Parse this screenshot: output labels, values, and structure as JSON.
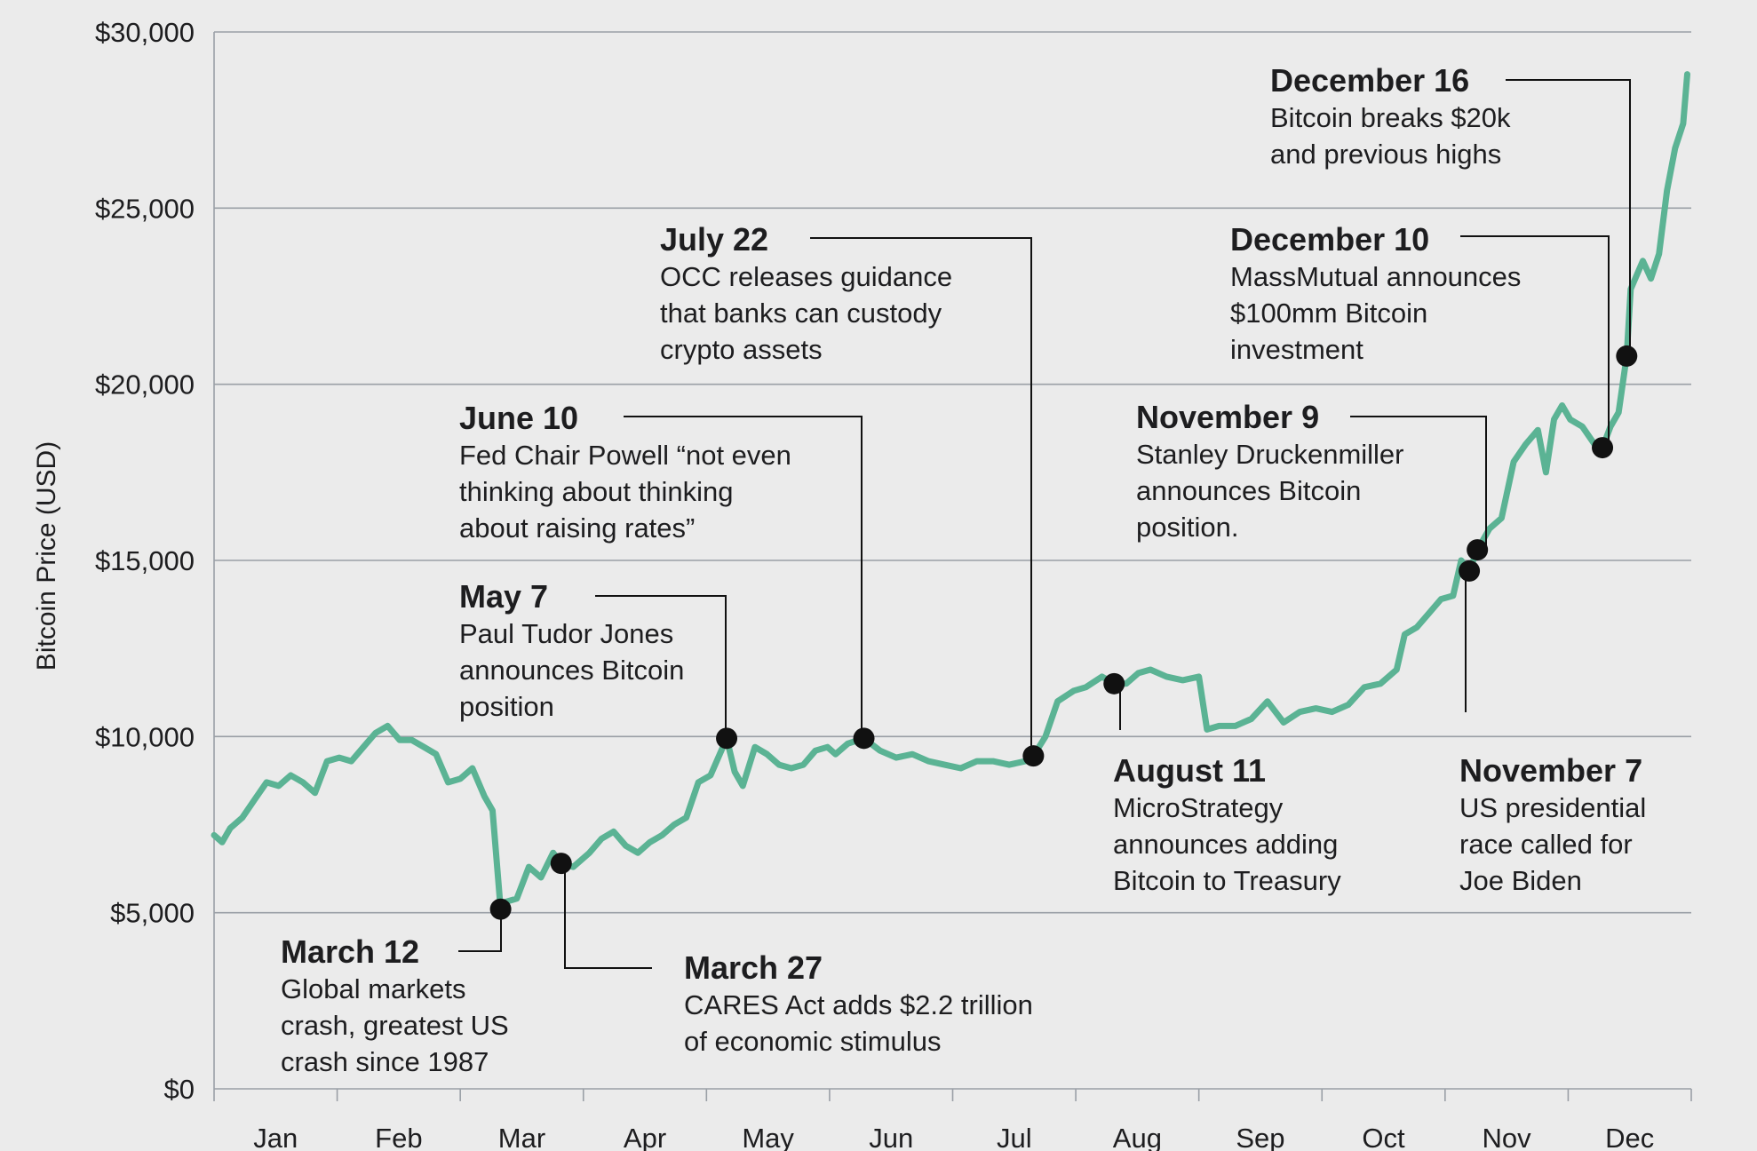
{
  "chart_data": {
    "type": "line",
    "ylabel": "Bitcoin Price (USD)",
    "xlabel": "",
    "title": "",
    "ylim": [
      0,
      30000
    ],
    "yticks": [
      "$0",
      "$5,000",
      "$10,000",
      "$15,000",
      "$20,000",
      "$25,000",
      "$30,000"
    ],
    "ytick_values": [
      0,
      5000,
      10000,
      15000,
      20000,
      25000,
      30000
    ],
    "months": [
      "Jan",
      "Feb",
      "Mar",
      "Apr",
      "May",
      "Jun",
      "Jul",
      "Aug",
      "Sep",
      "Oct",
      "Nov",
      "Dec"
    ],
    "grid": "horizontal",
    "colors": {
      "line": "#5bb394",
      "marker": "#111111",
      "grid": "#9a9fa6",
      "leader": "#111111"
    },
    "series": [
      {
        "x": [
          "2020-01-01",
          "2020-01-03",
          "2020-01-05",
          "2020-01-08",
          "2020-01-11",
          "2020-01-14",
          "2020-01-17",
          "2020-01-20",
          "2020-01-23",
          "2020-01-26",
          "2020-01-29",
          "2020-02-01",
          "2020-02-04",
          "2020-02-07",
          "2020-02-10",
          "2020-02-13",
          "2020-02-16",
          "2020-02-19",
          "2020-02-22",
          "2020-02-25",
          "2020-02-28",
          "2020-03-02",
          "2020-03-05",
          "2020-03-08",
          "2020-03-10",
          "2020-03-12",
          "2020-03-13",
          "2020-03-16",
          "2020-03-19",
          "2020-03-22",
          "2020-03-25",
          "2020-03-27",
          "2020-03-30",
          "2020-04-03",
          "2020-04-06",
          "2020-04-09",
          "2020-04-12",
          "2020-04-15",
          "2020-04-18",
          "2020-04-21",
          "2020-04-24",
          "2020-04-27",
          "2020-04-30",
          "2020-05-03",
          "2020-05-07",
          "2020-05-09",
          "2020-05-11",
          "2020-05-14",
          "2020-05-17",
          "2020-05-20",
          "2020-05-23",
          "2020-05-26",
          "2020-05-29",
          "2020-06-01",
          "2020-06-03",
          "2020-06-06",
          "2020-06-10",
          "2020-06-14",
          "2020-06-18",
          "2020-06-22",
          "2020-06-26",
          "2020-06-30",
          "2020-07-04",
          "2020-07-08",
          "2020-07-12",
          "2020-07-16",
          "2020-07-20",
          "2020-07-22",
          "2020-07-25",
          "2020-07-28",
          "2020-08-01",
          "2020-08-04",
          "2020-08-08",
          "2020-08-11",
          "2020-08-14",
          "2020-08-17",
          "2020-08-20",
          "2020-08-24",
          "2020-08-28",
          "2020-09-01",
          "2020-09-03",
          "2020-09-06",
          "2020-09-10",
          "2020-09-14",
          "2020-09-18",
          "2020-09-22",
          "2020-09-26",
          "2020-09-30",
          "2020-10-04",
          "2020-10-08",
          "2020-10-12",
          "2020-10-16",
          "2020-10-20",
          "2020-10-22",
          "2020-10-25",
          "2020-10-28",
          "2020-10-31",
          "2020-11-03",
          "2020-11-05",
          "2020-11-07",
          "2020-11-09",
          "2020-11-12",
          "2020-11-15",
          "2020-11-18",
          "2020-11-21",
          "2020-11-24",
          "2020-11-26",
          "2020-11-28",
          "2020-11-30",
          "2020-12-02",
          "2020-12-05",
          "2020-12-08",
          "2020-12-10",
          "2020-12-12",
          "2020-12-14",
          "2020-12-16",
          "2020-12-17",
          "2020-12-20",
          "2020-12-22",
          "2020-12-24",
          "2020-12-26",
          "2020-12-28",
          "2020-12-30",
          "2020-12-31"
        ],
        "y": [
          7200,
          7000,
          7400,
          7700,
          8200,
          8700,
          8600,
          8900,
          8700,
          8400,
          9300,
          9400,
          9300,
          9700,
          10100,
          10300,
          9900,
          9900,
          9700,
          9500,
          8700,
          8800,
          9100,
          8300,
          7900,
          5100,
          5300,
          5400,
          6300,
          6000,
          6700,
          6400,
          6300,
          6700,
          7100,
          7300,
          6900,
          6700,
          7000,
          7200,
          7500,
          7700,
          8700,
          8900,
          9950,
          9000,
          8600,
          9700,
          9500,
          9200,
          9100,
          9200,
          9600,
          9700,
          9500,
          9800,
          9950,
          9600,
          9400,
          9500,
          9300,
          9200,
          9100,
          9300,
          9300,
          9200,
          9300,
          9450,
          10000,
          11000,
          11300,
          11400,
          11700,
          11500,
          11500,
          11800,
          11900,
          11700,
          11600,
          11700,
          10200,
          10300,
          10300,
          10500,
          11000,
          10400,
          10700,
          10800,
          10700,
          10900,
          11400,
          11500,
          11900,
          12900,
          13100,
          13500,
          13900,
          14000,
          15000,
          14700,
          15300,
          15900,
          16200,
          17800,
          18300,
          18700,
          17500,
          19000,
          19400,
          19000,
          18800,
          18300,
          18200,
          18800,
          19200,
          20800,
          22700,
          23500,
          23000,
          23700,
          25500,
          26700,
          27400,
          28800
        ]
      }
    ],
    "annotations": [
      {
        "date": "March 12",
        "text": "Global markets\ncrash, greatest US\ncrash since 1987",
        "x": "2020-03-12",
        "y": 5100
      },
      {
        "date": "March 27",
        "text": "CARES Act adds $2.2 trillion\nof economic stimulus",
        "x": "2020-03-27",
        "y": 6400
      },
      {
        "date": "May 7",
        "text": "Paul Tudor Jones\nannounces Bitcoin\nposition",
        "x": "2020-05-07",
        "y": 9950
      },
      {
        "date": "June 10",
        "text": "Fed Chair Powell “not even\nthinking about thinking\nabout raising rates”",
        "x": "2020-06-10",
        "y": 9950
      },
      {
        "date": "July 22",
        "text": "OCC releases guidance\nthat banks can custody\ncrypto assets",
        "x": "2020-07-22",
        "y": 9450
      },
      {
        "date": "August 11",
        "text": "MicroStrategy\nannounces adding\nBitcoin to Treasury",
        "x": "2020-08-11",
        "y": 11500
      },
      {
        "date": "November 7",
        "text": "US presidential\nrace called for\nJoe Biden",
        "x": "2020-11-07",
        "y": 14700
      },
      {
        "date": "November 9",
        "text": "Stanley Druckenmiller\nannounces Bitcoin\nposition.",
        "x": "2020-11-09",
        "y": 15300
      },
      {
        "date": "December 10",
        "text": "MassMutual announces\n$100mm Bitcoin\ninvestment",
        "x": "2020-12-10",
        "y": 18200
      },
      {
        "date": "December 16",
        "text": "Bitcoin breaks $20k\nand previous highs",
        "x": "2020-12-16",
        "y": 20800
      }
    ]
  }
}
